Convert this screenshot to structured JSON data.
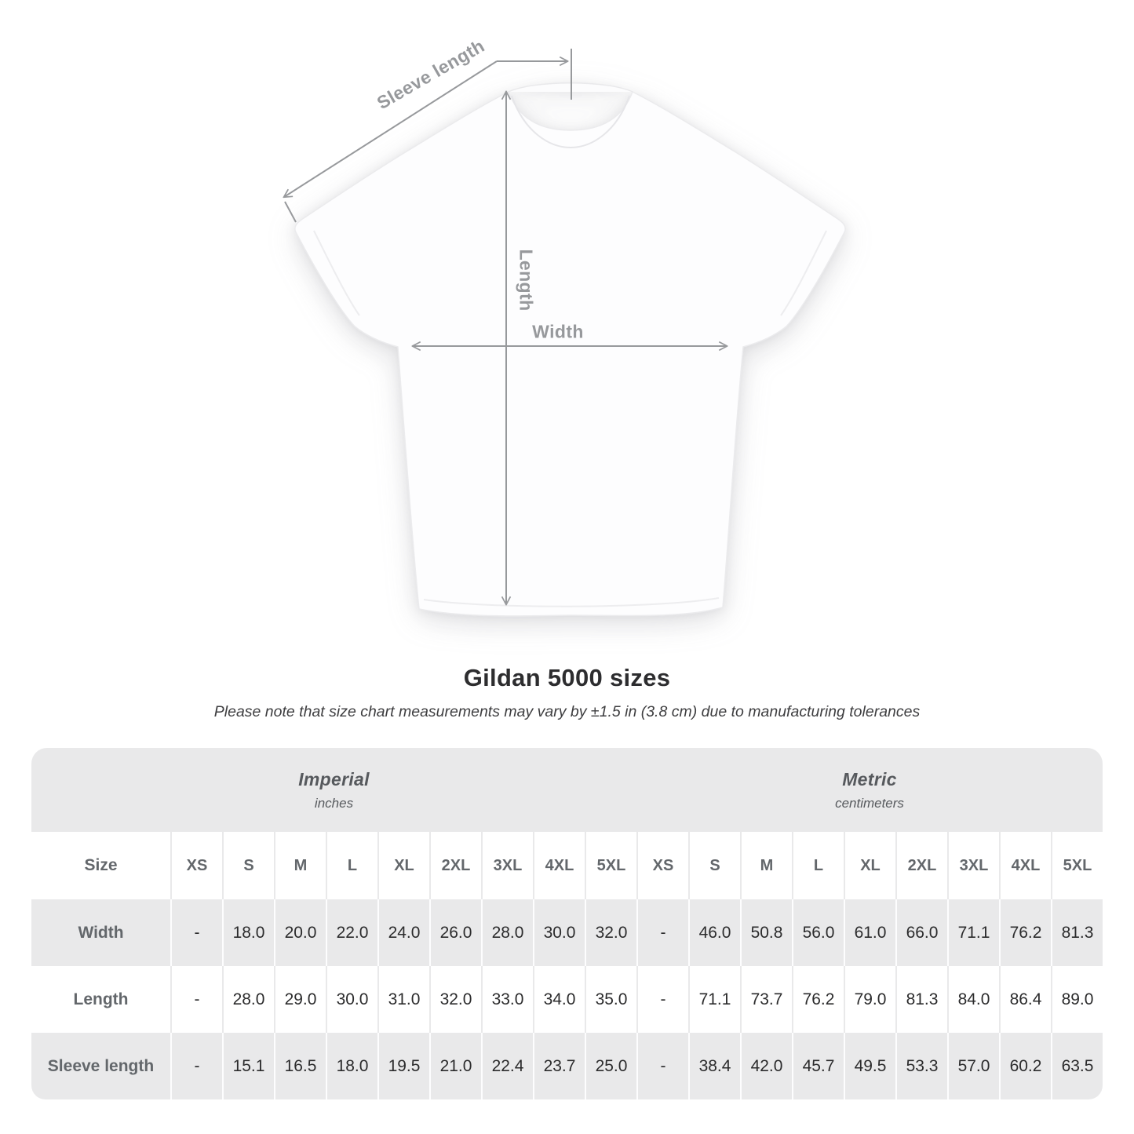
{
  "title": "Gildan 5000 sizes",
  "note": "Please note that size chart measurements may vary by ±1.5 in (3.8 cm) due to manufacturing tolerances",
  "diagram": {
    "sleeve_length_label": "Sleeve length",
    "length_label": "Length",
    "width_label": "Width"
  },
  "colors": {
    "table_band_gray": "#e9e9ea",
    "arrow_gray": "#97999c",
    "value_text": "#2b2b2c",
    "header_text": "#63676b"
  },
  "chart_data": {
    "type": "table",
    "title": "Gildan 5000 sizes",
    "unit_headers": [
      {
        "label": "Imperial",
        "sub": "inches"
      },
      {
        "label": "Metric",
        "sub": "centimeters"
      }
    ],
    "size_header": "Size",
    "sizes": [
      "XS",
      "S",
      "M",
      "L",
      "XL",
      "2XL",
      "3XL",
      "4XL",
      "5XL"
    ],
    "rows": [
      {
        "label": "Width",
        "imperial": [
          "-",
          "18.0",
          "20.0",
          "22.0",
          "24.0",
          "26.0",
          "28.0",
          "30.0",
          "32.0"
        ],
        "metric": [
          "-",
          "46.0",
          "50.8",
          "56.0",
          "61.0",
          "66.0",
          "71.1",
          "76.2",
          "81.3"
        ]
      },
      {
        "label": "Length",
        "imperial": [
          "-",
          "28.0",
          "29.0",
          "30.0",
          "31.0",
          "32.0",
          "33.0",
          "34.0",
          "35.0"
        ],
        "metric": [
          "-",
          "71.1",
          "73.7",
          "76.2",
          "79.0",
          "81.3",
          "84.0",
          "86.4",
          "89.0"
        ]
      },
      {
        "label": "Sleeve length",
        "imperial": [
          "-",
          "15.1",
          "16.5",
          "18.0",
          "19.5",
          "21.0",
          "22.4",
          "23.7",
          "25.0"
        ],
        "metric": [
          "-",
          "38.4",
          "42.0",
          "45.7",
          "49.5",
          "53.3",
          "57.0",
          "60.2",
          "63.5"
        ]
      }
    ]
  }
}
